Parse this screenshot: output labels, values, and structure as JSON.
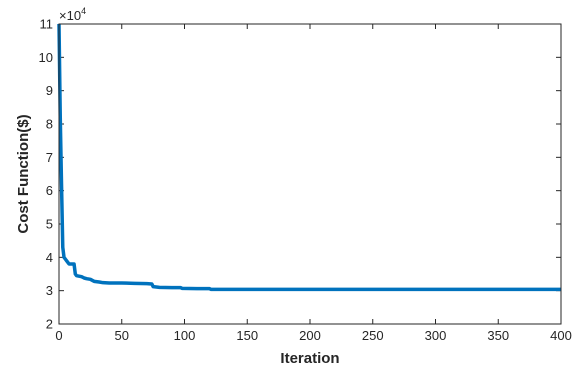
{
  "chart_data": {
    "type": "line",
    "title": "",
    "xlabel": "Iteration",
    "ylabel": "Cost Function($)",
    "y_multiplier_base": "×10",
    "y_multiplier_exp": "4",
    "xlim": [
      0,
      400
    ],
    "ylim": [
      2,
      11
    ],
    "xticks": [
      0,
      50,
      100,
      150,
      200,
      250,
      300,
      350,
      400
    ],
    "yticks": [
      2,
      3,
      4,
      5,
      6,
      7,
      8,
      9,
      10,
      11
    ],
    "grid": false,
    "series": [
      {
        "color": "#0072BD",
        "x": [
          0,
          1,
          2,
          3,
          4,
          5,
          6,
          7,
          8,
          10,
          12,
          13,
          14,
          18,
          20,
          22,
          25,
          27,
          28,
          32,
          35,
          40,
          50,
          60,
          70,
          74,
          75,
          80,
          90,
          97,
          98,
          110,
          120,
          121,
          150,
          200,
          250,
          300,
          350,
          400
        ],
        "y": [
          11,
          8.2,
          6.2,
          4.3,
          4.0,
          3.95,
          3.9,
          3.85,
          3.8,
          3.8,
          3.8,
          3.5,
          3.45,
          3.42,
          3.38,
          3.36,
          3.34,
          3.3,
          3.28,
          3.26,
          3.24,
          3.23,
          3.23,
          3.22,
          3.21,
          3.2,
          3.12,
          3.1,
          3.09,
          3.09,
          3.07,
          3.06,
          3.06,
          3.04,
          3.04,
          3.04,
          3.04,
          3.04,
          3.04,
          3.04
        ]
      }
    ]
  }
}
